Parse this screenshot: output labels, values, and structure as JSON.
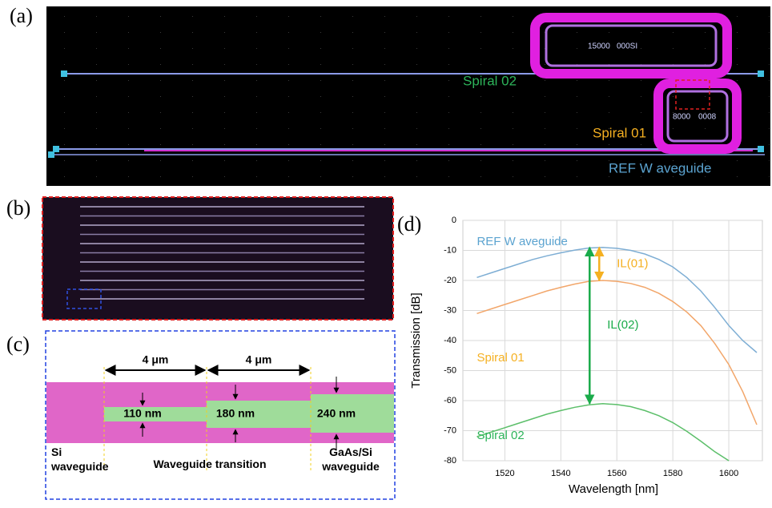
{
  "panel_labels": [
    "(a)",
    "(b)",
    "(c)",
    "(d)"
  ],
  "panel_a": {
    "labels": [
      {
        "text": "Spiral 02",
        "color": "#2db45a"
      },
      {
        "text": "Spiral 01",
        "color": "#f5b021"
      },
      {
        "text": "REF W aveguide",
        "color": "#5ba3d0"
      }
    ],
    "chip_text": [
      "15000",
      "000SI",
      "8000",
      "0008"
    ]
  },
  "panel_c": {
    "dims": [
      "4 μm",
      "4 μm"
    ],
    "widths": [
      "110 nm",
      "180 nm",
      "240 nm"
    ],
    "labels": [
      "Si\nwaveguide",
      "Waveguide transition",
      "GaAs/Si\nwaveguide"
    ]
  },
  "chart_data": {
    "type": "line",
    "xlabel": "Wavelength [nm]",
    "ylabel": "Transmission [dB]",
    "xlim": [
      1505,
      1612
    ],
    "ylim": [
      -80,
      0
    ],
    "xticks": [
      1520,
      1540,
      1560,
      1580,
      1600
    ],
    "yticks": [
      0,
      -10,
      -20,
      -30,
      -40,
      -50,
      -60,
      -70,
      -80
    ],
    "grid": true,
    "x": [
      1510,
      1515,
      1520,
      1525,
      1530,
      1535,
      1540,
      1545,
      1550,
      1555,
      1560,
      1565,
      1570,
      1575,
      1580,
      1585,
      1590,
      1595,
      1600,
      1605,
      1610
    ],
    "series": [
      {
        "name": "REF W aveguide",
        "color": "#7eaed4",
        "label_color": "#5ba3d0",
        "values": [
          -19,
          -17.5,
          -16,
          -14.5,
          -13,
          -11.8,
          -10.8,
          -9.9,
          -9.2,
          -9,
          -9.3,
          -10,
          -11.2,
          -13,
          -15.5,
          -19,
          -23.5,
          -29,
          -35,
          -40,
          -44
        ]
      },
      {
        "name": "Spiral 01",
        "color": "#f2a66a",
        "label_color": "#f5b021",
        "values": [
          -31,
          -29.5,
          -28,
          -26.5,
          -25,
          -23.5,
          -22.3,
          -21.2,
          -20.3,
          -20,
          -20.3,
          -21,
          -22.3,
          -24.3,
          -27,
          -30.5,
          -35,
          -41,
          -48,
          -57,
          -68
        ]
      },
      {
        "name": "Spiral 02",
        "color": "#5cbf6a",
        "label_color": "#2db45a",
        "values": [
          -72,
          -70.5,
          -69,
          -67.5,
          -66,
          -64.5,
          -63.3,
          -62.2,
          -61.4,
          -61,
          -61.3,
          -62,
          -63.3,
          -65,
          -67.3,
          -70.2,
          -73.5,
          -77,
          -80,
          null,
          null
        ]
      }
    ],
    "annotations": [
      {
        "text": "IL(01)",
        "color": "#f5b021",
        "x": 1552,
        "from": -9,
        "to": -20
      },
      {
        "text": "IL(02)",
        "color": "#1aab4a",
        "x": 1552,
        "from": -9,
        "to": -61
      }
    ]
  }
}
